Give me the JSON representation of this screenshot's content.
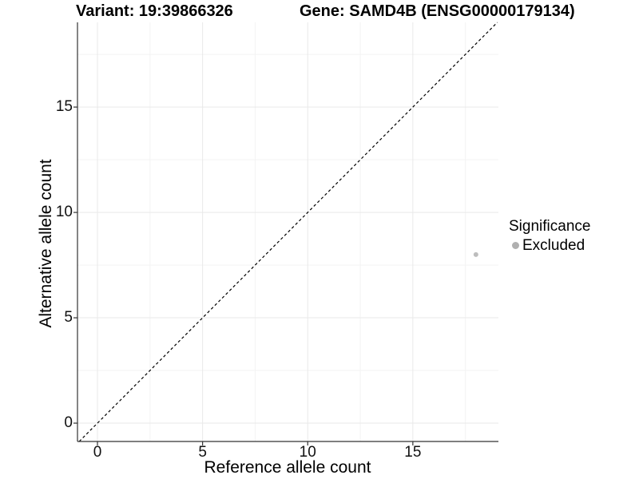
{
  "titles": {
    "variant": "Variant: 19:39866326",
    "gene": "Gene: SAMD4B (ENSG00000179134)"
  },
  "chart_data": {
    "type": "scatter",
    "title_left": "Variant: 19:39866326",
    "title_right": "Gene: SAMD4B (ENSG00000179134)",
    "xlabel": "Reference allele count",
    "ylabel": "Alternative allele count",
    "xlim": [
      -0.95,
      19.07
    ],
    "ylim": [
      -0.87,
      19.02
    ],
    "x_ticks": [
      0,
      5,
      10,
      15
    ],
    "y_ticks": [
      0,
      5,
      10,
      15
    ],
    "x_minor_gridlines": [
      2.5,
      7.5,
      12.5,
      17.5
    ],
    "y_minor_gridlines": [
      2.5,
      7.5,
      12.5,
      17.5
    ],
    "grid": "major+minor",
    "legend_position": "right",
    "series": [
      {
        "name": "Excluded",
        "marker": "circle",
        "color": "#bdbdbd",
        "points": [
          [
            18,
            8
          ]
        ]
      }
    ],
    "reference_line": {
      "slope": 1,
      "intercept": 0,
      "style": "dashed",
      "color": "#000000"
    }
  },
  "legend": {
    "title": "Significance",
    "items": [
      {
        "label": "Excluded",
        "swatch": "circle",
        "color": "#b0b0b0"
      }
    ]
  },
  "colors": {
    "background": "#ffffff",
    "axis_line": "#333333",
    "tick_mark": "#333333",
    "grid_major": "#e9e9e9",
    "grid_minor": "#f3f3f3",
    "text": "#000000",
    "point": "#bdbdbd"
  }
}
